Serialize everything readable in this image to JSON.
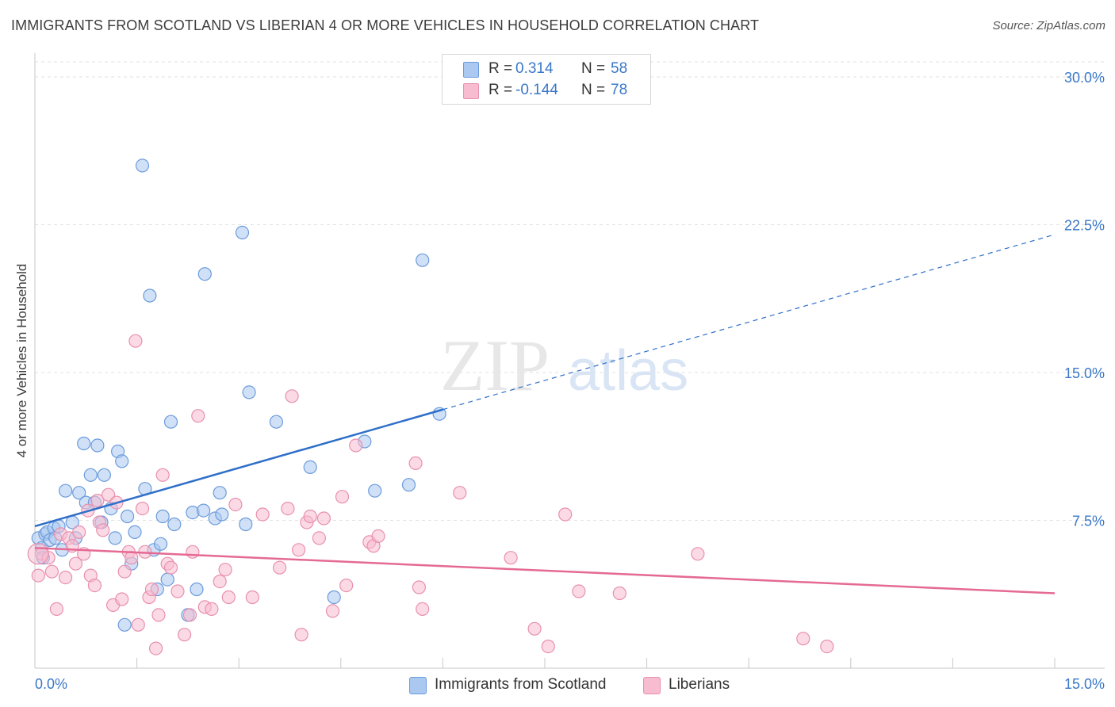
{
  "header": {
    "title": "IMMIGRANTS FROM SCOTLAND VS LIBERIAN 4 OR MORE VEHICLES IN HOUSEHOLD CORRELATION CHART",
    "source": "Source: ZipAtlas.com"
  },
  "watermark": {
    "zip": "ZIP",
    "atlas": "atlas"
  },
  "legend_top": {
    "rows": [
      {
        "r_label": "R =",
        "r_value": "0.314",
        "n_label": "N =",
        "n_value": "58",
        "color": "#aac8f0"
      },
      {
        "r_label": "R =",
        "r_value": "-0.144",
        "n_label": "N =",
        "n_value": "78",
        "color": "#f8bcd0"
      }
    ]
  },
  "legend_bottom": {
    "items": [
      {
        "label": "Immigrants from Scotland",
        "color": "#aac8f0"
      },
      {
        "label": "Liberians",
        "color": "#f8bcd0"
      }
    ]
  },
  "chart_data": {
    "type": "scatter",
    "title": "IMMIGRANTS FROM SCOTLAND VS LIBERIAN 4 OR MORE VEHICLES IN HOUSEHOLD CORRELATION CHART",
    "xlabel": "",
    "ylabel": "4 or more Vehicles in Household",
    "xlim": [
      0,
      15
    ],
    "ylim": [
      0,
      30
    ],
    "x_tick_labels": [
      "0.0%",
      "15.0%"
    ],
    "y_ticks": [
      7.5,
      15.0,
      22.5,
      30.0
    ],
    "y_tick_labels": [
      "7.5%",
      "15.0%",
      "22.5%",
      "30.0%"
    ],
    "grid": true,
    "legend_position": "top-center",
    "series": [
      {
        "name": "Immigrants from Scotland",
        "color": "#6b9bdc",
        "fill": "#aac8f0",
        "line_color": "#2f6fc9",
        "R": 0.314,
        "N": 58,
        "trend": {
          "x0": 0,
          "y0": 7.2,
          "x1": 15,
          "y1": 22.0,
          "solid_until": 6.0
        },
        "points": [
          [
            0.05,
            6.6
          ],
          [
            0.1,
            6.1
          ],
          [
            0.12,
            5.6
          ],
          [
            0.15,
            6.8
          ],
          [
            0.18,
            6.9
          ],
          [
            0.22,
            6.5
          ],
          [
            0.28,
            7.1
          ],
          [
            0.3,
            6.6
          ],
          [
            0.35,
            7.2
          ],
          [
            0.4,
            6.0
          ],
          [
            0.45,
            9.0
          ],
          [
            0.55,
            7.4
          ],
          [
            0.6,
            6.6
          ],
          [
            0.65,
            8.9
          ],
          [
            0.72,
            11.4
          ],
          [
            0.75,
            8.4
          ],
          [
            0.82,
            9.8
          ],
          [
            0.88,
            8.4
          ],
          [
            0.92,
            11.3
          ],
          [
            0.98,
            7.4
          ],
          [
            1.02,
            9.8
          ],
          [
            1.12,
            8.1
          ],
          [
            1.18,
            6.6
          ],
          [
            1.22,
            11.0
          ],
          [
            1.28,
            10.5
          ],
          [
            1.32,
            2.2
          ],
          [
            1.36,
            7.7
          ],
          [
            1.42,
            5.3
          ],
          [
            1.47,
            6.9
          ],
          [
            1.62,
            9.1
          ],
          [
            1.58,
            25.5
          ],
          [
            1.69,
            18.9
          ],
          [
            1.75,
            6.0
          ],
          [
            1.8,
            4.0
          ],
          [
            1.85,
            6.3
          ],
          [
            1.88,
            7.7
          ],
          [
            1.95,
            4.5
          ],
          [
            2.0,
            12.5
          ],
          [
            2.05,
            7.3
          ],
          [
            2.25,
            2.7
          ],
          [
            2.32,
            7.9
          ],
          [
            2.38,
            4.0
          ],
          [
            2.48,
            8.0
          ],
          [
            2.5,
            20.0
          ],
          [
            2.65,
            7.6
          ],
          [
            2.72,
            8.9
          ],
          [
            2.75,
            7.8
          ],
          [
            3.05,
            22.1
          ],
          [
            3.1,
            7.3
          ],
          [
            3.15,
            14.0
          ],
          [
            3.55,
            12.5
          ],
          [
            4.05,
            10.2
          ],
          [
            4.4,
            3.6
          ],
          [
            4.85,
            11.5
          ],
          [
            5.0,
            9.0
          ],
          [
            5.5,
            9.3
          ],
          [
            5.7,
            20.7
          ],
          [
            5.95,
            12.9
          ]
        ]
      },
      {
        "name": "Liberians",
        "color": "#e890ae",
        "fill": "#f8bcd0",
        "line_color": "#e46a94",
        "R": -0.144,
        "N": 78,
        "trend": {
          "x0": 0,
          "y0": 6.1,
          "x1": 15,
          "y1": 3.8
        },
        "points": [
          [
            0.05,
            4.7
          ],
          [
            0.1,
            5.8
          ],
          [
            0.2,
            5.6
          ],
          [
            0.25,
            4.9
          ],
          [
            0.32,
            3.0
          ],
          [
            0.38,
            6.8
          ],
          [
            0.45,
            4.6
          ],
          [
            0.5,
            6.6
          ],
          [
            0.55,
            6.2
          ],
          [
            0.6,
            5.3
          ],
          [
            0.65,
            6.9
          ],
          [
            0.72,
            5.8
          ],
          [
            0.78,
            8.0
          ],
          [
            0.82,
            4.7
          ],
          [
            0.88,
            4.2
          ],
          [
            0.92,
            8.5
          ],
          [
            0.95,
            7.4
          ],
          [
            1.0,
            7.0
          ],
          [
            1.08,
            8.8
          ],
          [
            1.15,
            3.2
          ],
          [
            1.2,
            8.4
          ],
          [
            1.28,
            3.5
          ],
          [
            1.32,
            4.9
          ],
          [
            1.38,
            5.9
          ],
          [
            1.42,
            5.6
          ],
          [
            1.48,
            16.6
          ],
          [
            1.52,
            2.2
          ],
          [
            1.58,
            8.1
          ],
          [
            1.62,
            5.9
          ],
          [
            1.68,
            3.6
          ],
          [
            1.72,
            4.0
          ],
          [
            1.78,
            1.0
          ],
          [
            1.82,
            2.7
          ],
          [
            1.88,
            9.8
          ],
          [
            1.95,
            5.3
          ],
          [
            2.0,
            5.1
          ],
          [
            2.1,
            3.9
          ],
          [
            2.2,
            1.7
          ],
          [
            2.28,
            2.7
          ],
          [
            2.32,
            5.9
          ],
          [
            2.4,
            12.8
          ],
          [
            2.5,
            3.1
          ],
          [
            2.6,
            3.0
          ],
          [
            2.72,
            4.4
          ],
          [
            2.8,
            5.0
          ],
          [
            2.85,
            3.6
          ],
          [
            2.95,
            8.3
          ],
          [
            3.2,
            3.6
          ],
          [
            3.35,
            7.8
          ],
          [
            3.6,
            5.1
          ],
          [
            3.72,
            8.1
          ],
          [
            3.78,
            13.8
          ],
          [
            3.88,
            6.0
          ],
          [
            3.92,
            1.7
          ],
          [
            4.0,
            7.4
          ],
          [
            4.05,
            7.7
          ],
          [
            4.18,
            6.6
          ],
          [
            4.25,
            7.6
          ],
          [
            4.38,
            2.9
          ],
          [
            4.52,
            8.7
          ],
          [
            4.58,
            4.2
          ],
          [
            4.72,
            11.3
          ],
          [
            4.92,
            6.4
          ],
          [
            4.98,
            6.2
          ],
          [
            5.05,
            6.7
          ],
          [
            5.6,
            10.4
          ],
          [
            5.65,
            4.1
          ],
          [
            5.7,
            3.0
          ],
          [
            6.25,
            8.9
          ],
          [
            7.0,
            5.6
          ],
          [
            7.35,
            2.0
          ],
          [
            7.55,
            1.1
          ],
          [
            7.8,
            7.8
          ],
          [
            8.0,
            3.9
          ],
          [
            8.6,
            3.8
          ],
          [
            9.75,
            5.8
          ],
          [
            11.3,
            1.5
          ],
          [
            11.65,
            1.1
          ]
        ]
      }
    ]
  }
}
